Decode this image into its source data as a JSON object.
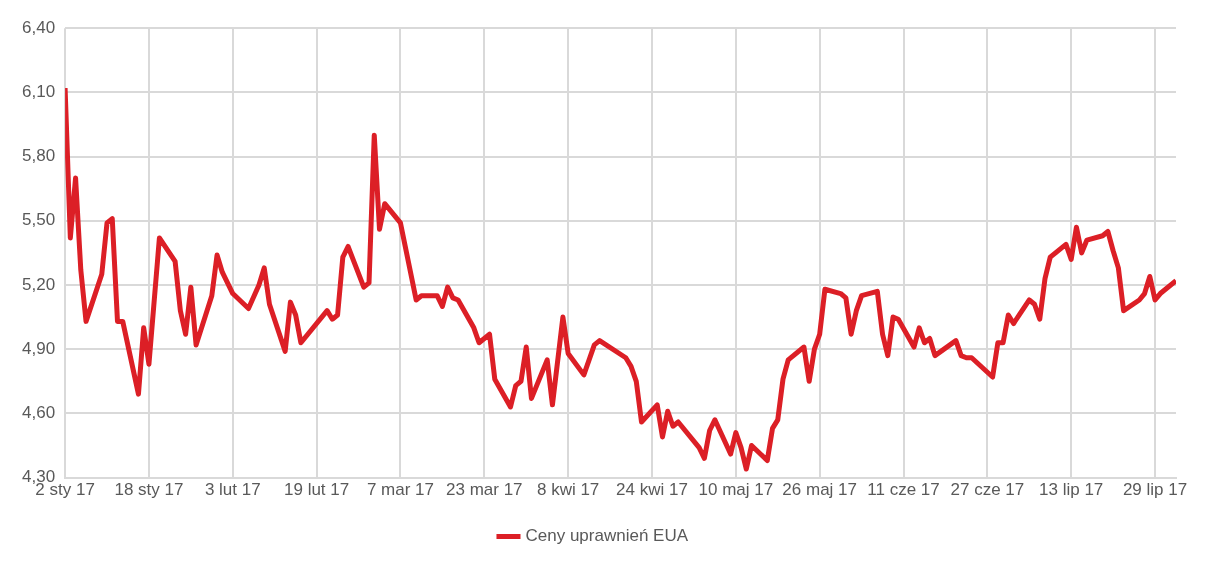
{
  "chart_data": {
    "type": "line",
    "x": [
      "--01-02",
      "--01-03",
      "--01-04",
      "--01-05",
      "--01-06",
      "--01-09",
      "--01-10",
      "--01-11",
      "--01-12",
      "--01-13",
      "--01-16",
      "--01-17",
      "--01-18",
      "--01-20",
      "--01-23",
      "--01-24",
      "--01-25",
      "--01-26",
      "--01-27",
      "--01-30",
      "--01-31",
      "--02-01",
      "--02-03",
      "--02-06",
      "--02-08",
      "--02-09",
      "--02-10",
      "--02-13",
      "--02-14",
      "--02-15",
      "--02-16",
      "--02-21",
      "--02-22",
      "--02-23",
      "--02-24",
      "--02-25",
      "--02-28",
      "--03-01",
      "--03-02",
      "--03-03",
      "--03-04",
      "--03-07",
      "--03-10",
      "--03-11",
      "--03-14",
      "--03-15",
      "--03-16",
      "--03-17",
      "--03-18",
      "--03-21",
      "--03-22",
      "--03-24",
      "--03-25",
      "--03-28",
      "--03-29",
      "--03-30",
      "--03-31",
      "--04-01",
      "--04-04",
      "--04-05",
      "--04-07",
      "--04-08",
      "--04-11",
      "--04-13",
      "--04-14",
      "--04-19",
      "--04-20",
      "--04-21",
      "--04-22",
      "--04-25",
      "--04-26",
      "--04-27",
      "--04-28",
      "--04-29",
      "--05-03",
      "--05-04",
      "--05-05",
      "--05-06",
      "--05-09",
      "--05-10",
      "--05-11",
      "--05-12",
      "--05-13",
      "--05-16",
      "--05-17",
      "--05-18",
      "--05-19",
      "--05-20",
      "--05-23",
      "--05-24",
      "--05-25",
      "--05-26",
      "--05-27",
      "--05-30",
      "--05-31",
      "--06-01",
      "--06-02",
      "--06-03",
      "--06-06",
      "--06-07",
      "--06-08",
      "--06-09",
      "--06-10",
      "--06-13",
      "--06-14",
      "--06-15",
      "--06-16",
      "--06-17",
      "--06-21",
      "--06-22",
      "--06-23",
      "--06-24",
      "--06-28",
      "--06-29",
      "--06-30",
      "--07-01",
      "--07-02",
      "--07-05",
      "--07-06",
      "--07-07",
      "--07-08",
      "--07-09",
      "--07-12",
      "--07-13",
      "--07-14",
      "--07-15",
      "--07-16",
      "--07-19",
      "--07-20",
      "--07-21",
      "--07-22",
      "--07-23",
      "--07-26",
      "--07-27",
      "--07-28",
      "--07-29",
      "--07-30",
      "--08-02"
    ],
    "series": [
      {
        "name": "Ceny uprawnień EUA",
        "color": "#dc1f26",
        "values": [
          6.12,
          5.42,
          5.7,
          5.27,
          5.03,
          5.25,
          5.49,
          5.51,
          5.03,
          5.03,
          4.69,
          5.0,
          4.83,
          5.42,
          5.31,
          5.08,
          4.97,
          5.19,
          4.92,
          5.15,
          5.34,
          5.26,
          5.16,
          5.09,
          5.2,
          5.28,
          5.11,
          4.89,
          5.12,
          5.06,
          4.93,
          5.08,
          5.04,
          5.06,
          5.33,
          5.38,
          5.19,
          5.21,
          5.9,
          5.46,
          5.58,
          5.49,
          5.13,
          5.15,
          5.15,
          5.1,
          5.19,
          5.14,
          5.13,
          5.0,
          4.93,
          4.97,
          4.76,
          4.63,
          4.73,
          4.75,
          4.91,
          4.67,
          4.85,
          4.64,
          5.05,
          4.88,
          4.78,
          4.92,
          4.94,
          4.86,
          4.82,
          4.75,
          4.56,
          4.64,
          4.49,
          4.61,
          4.54,
          4.56,
          4.44,
          4.39,
          4.52,
          4.57,
          4.41,
          4.51,
          4.44,
          4.34,
          4.45,
          4.38,
          4.53,
          4.57,
          4.76,
          4.85,
          4.91,
          4.75,
          4.9,
          4.97,
          5.18,
          5.16,
          5.14,
          4.97,
          5.08,
          5.15,
          5.17,
          4.97,
          4.87,
          5.05,
          5.04,
          4.91,
          5.0,
          4.93,
          4.95,
          4.87,
          4.94,
          4.87,
          4.86,
          4.86,
          4.77,
          4.93,
          4.93,
          5.06,
          5.02,
          5.13,
          5.11,
          5.04,
          5.23,
          5.33,
          5.39,
          5.32,
          5.47,
          5.35,
          5.41,
          5.43,
          5.45,
          5.36,
          5.28,
          5.08,
          5.13,
          5.16,
          5.24,
          5.13,
          5.16,
          5.22
        ]
      }
    ],
    "xlim": [
      "--01-02",
      "--08-02"
    ],
    "xticks": [
      {
        "value": "--01-02",
        "label": "2 sty 17"
      },
      {
        "value": "--01-18",
        "label": "18 sty 17"
      },
      {
        "value": "--02-03",
        "label": "3 lut 17"
      },
      {
        "value": "--02-19",
        "label": "19 lut 17"
      },
      {
        "value": "--03-07",
        "label": "7 mar 17"
      },
      {
        "value": "--03-23",
        "label": "23 mar 17"
      },
      {
        "value": "--04-08",
        "label": "8 kwi 17"
      },
      {
        "value": "--04-24",
        "label": "24 kwi 17"
      },
      {
        "value": "--05-10",
        "label": "10 maj 17"
      },
      {
        "value": "--05-26",
        "label": "26 maj 17"
      },
      {
        "value": "--06-11",
        "label": "11 cze 17"
      },
      {
        "value": "--06-27",
        "label": "27 cze 17"
      },
      {
        "value": "--07-13",
        "label": "13 lip 17"
      },
      {
        "value": "--07-29",
        "label": "29 lip 17"
      }
    ],
    "ylim": [
      4.3,
      6.4
    ],
    "yticks": [
      {
        "value": 4.3,
        "label": "4,30"
      },
      {
        "value": 4.6,
        "label": "4,60"
      },
      {
        "value": 4.9,
        "label": "4,90"
      },
      {
        "value": 5.2,
        "label": "5,20"
      },
      {
        "value": 5.5,
        "label": "5,50"
      },
      {
        "value": 5.8,
        "label": "5,80"
      },
      {
        "value": 6.1,
        "label": "6,10"
      },
      {
        "value": 6.4,
        "label": "6,40"
      }
    ],
    "grid": true,
    "legend": "bottom",
    "marker": "none",
    "line_style": "solid"
  }
}
